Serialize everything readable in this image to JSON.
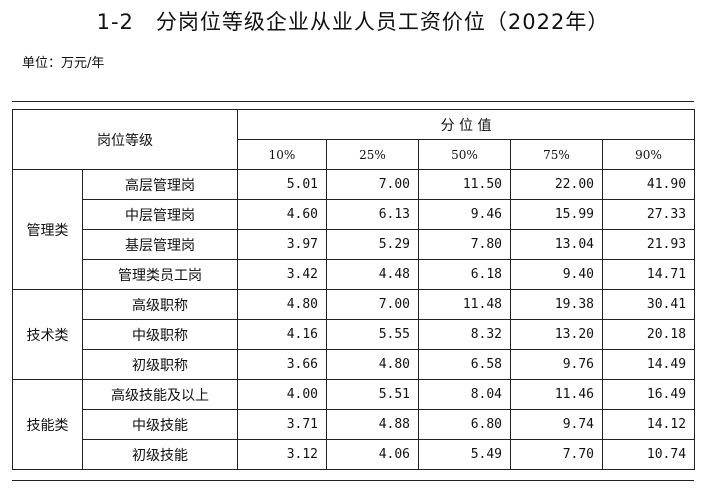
{
  "title": {
    "number": "1-2",
    "text": "分岗位等级企业从业人员工资价位（2022年）"
  },
  "unit": "单位：万元/年",
  "table": {
    "col_header": "岗位等级",
    "percentile_header": "分 位 值",
    "percentiles": [
      "10%",
      "25%",
      "50%",
      "75%",
      "90%"
    ],
    "groups": [
      {
        "name": "管理类",
        "rows": [
          {
            "label": "高层管理岗",
            "values": [
              "5.01",
              "7.00",
              "11.50",
              "22.00",
              "41.90"
            ]
          },
          {
            "label": "中层管理岗",
            "values": [
              "4.60",
              "6.13",
              "9.46",
              "15.99",
              "27.33"
            ]
          },
          {
            "label": "基层管理岗",
            "values": [
              "3.97",
              "5.29",
              "7.80",
              "13.04",
              "21.93"
            ]
          },
          {
            "label": "管理类员工岗",
            "values": [
              "3.42",
              "4.48",
              "6.18",
              "9.40",
              "14.71"
            ]
          }
        ]
      },
      {
        "name": "技术类",
        "rows": [
          {
            "label": "高级职称",
            "values": [
              "4.80",
              "7.00",
              "11.48",
              "19.38",
              "30.41"
            ]
          },
          {
            "label": "中级职称",
            "values": [
              "4.16",
              "5.55",
              "8.32",
              "13.20",
              "20.18"
            ]
          },
          {
            "label": "初级职称",
            "values": [
              "3.66",
              "4.80",
              "6.58",
              "9.76",
              "14.49"
            ]
          }
        ]
      },
      {
        "name": "技能类",
        "rows": [
          {
            "label": "高级技能及以上",
            "values": [
              "4.00",
              "5.51",
              "8.04",
              "11.46",
              "16.49"
            ]
          },
          {
            "label": "中级技能",
            "values": [
              "3.71",
              "4.88",
              "6.80",
              "9.74",
              "14.12"
            ]
          },
          {
            "label": "初级技能",
            "values": [
              "3.12",
              "4.06",
              "5.49",
              "7.70",
              "10.74"
            ]
          }
        ]
      }
    ]
  }
}
